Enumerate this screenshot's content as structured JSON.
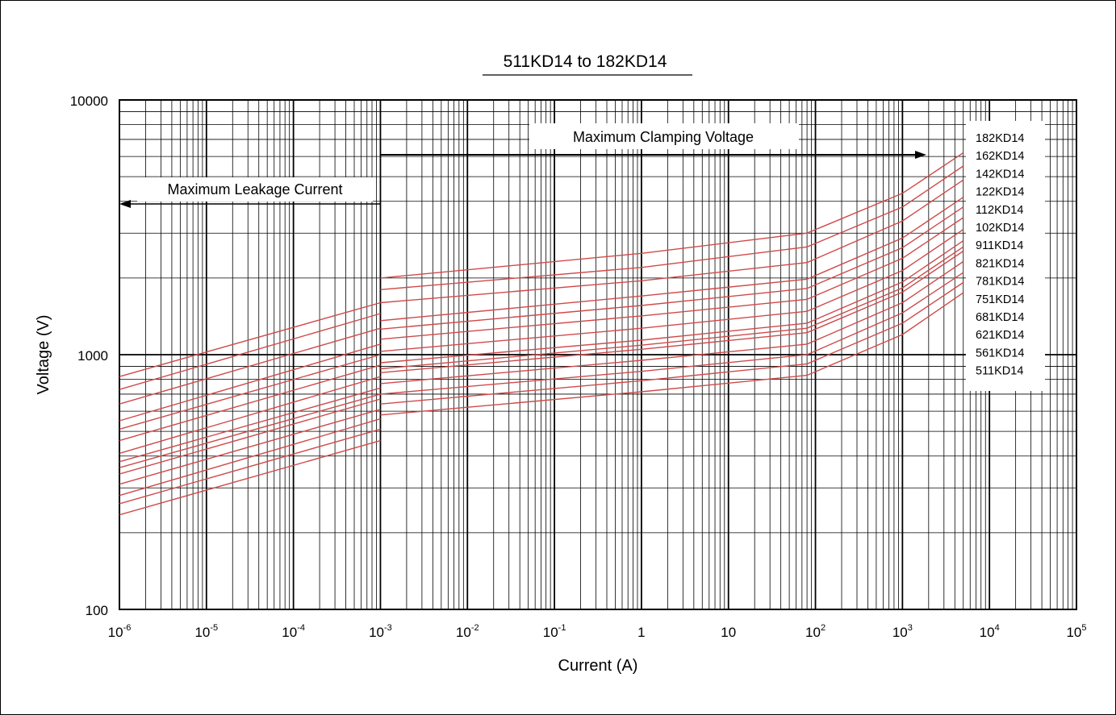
{
  "chart_data": {
    "type": "line",
    "title": "511KD14 to 182KD14",
    "xlabel": "Current (A)",
    "ylabel": "Voltage (V)",
    "x_scale": "log",
    "y_scale": "log",
    "xlim": [
      1e-06,
      100000
    ],
    "ylim": [
      100,
      10000
    ],
    "grid": true,
    "x_ticks": [
      {
        "value": 1e-06,
        "base": "10",
        "exp": "-6"
      },
      {
        "value": 1e-05,
        "base": "10",
        "exp": "-5"
      },
      {
        "value": 0.0001,
        "base": "10",
        "exp": "-4"
      },
      {
        "value": 0.001,
        "base": "10",
        "exp": "-3"
      },
      {
        "value": 0.01,
        "base": "10",
        "exp": "-2"
      },
      {
        "value": 0.1,
        "base": "10",
        "exp": "-1"
      },
      {
        "value": 1,
        "base": "1",
        "exp": ""
      },
      {
        "value": 10,
        "base": "10",
        "exp": ""
      },
      {
        "value": 100,
        "base": "10",
        "exp": "2"
      },
      {
        "value": 1000,
        "base": "10",
        "exp": "3"
      },
      {
        "value": 10000,
        "base": "10",
        "exp": "4"
      },
      {
        "value": 100000,
        "base": "10",
        "exp": "5"
      }
    ],
    "y_ticks": [
      {
        "value": 100,
        "label": "100"
      },
      {
        "value": 1000,
        "label": "1000"
      },
      {
        "value": 10000,
        "label": "10000"
      }
    ],
    "annotations": {
      "clamping": "Maximum Clamping Voltage",
      "leakage": "Maximum Leakage Current"
    },
    "legend_position": "right",
    "line_color": "#d04a4a",
    "series": [
      {
        "name": "182KD14",
        "leakage": [
          [
            1e-06,
            820
          ],
          [
            0.001,
            1600
          ]
        ],
        "clamping": [
          [
            0.001,
            2000
          ],
          [
            1,
            2500
          ],
          [
            80,
            3000
          ],
          [
            1000,
            4300
          ],
          [
            5000,
            6200
          ]
        ]
      },
      {
        "name": "162KD14",
        "leakage": [
          [
            1e-06,
            730
          ],
          [
            0.001,
            1450
          ]
        ],
        "clamping": [
          [
            0.001,
            1800
          ],
          [
            1,
            2200
          ],
          [
            80,
            2650
          ],
          [
            1000,
            3800
          ],
          [
            5000,
            5500
          ]
        ]
      },
      {
        "name": "142KD14",
        "leakage": [
          [
            1e-06,
            640
          ],
          [
            0.001,
            1270
          ]
        ],
        "clamping": [
          [
            0.001,
            1600
          ],
          [
            1,
            1950
          ],
          [
            80,
            2300
          ],
          [
            1000,
            3350
          ],
          [
            5000,
            4850
          ]
        ]
      },
      {
        "name": "122KD14",
        "leakage": [
          [
            1e-06,
            550
          ],
          [
            0.001,
            1100
          ]
        ],
        "clamping": [
          [
            0.001,
            1360
          ],
          [
            1,
            1700
          ],
          [
            80,
            1980
          ],
          [
            1000,
            2870
          ],
          [
            5000,
            4150
          ]
        ]
      },
      {
        "name": "112KD14",
        "leakage": [
          [
            1e-06,
            510
          ],
          [
            0.001,
            1000
          ]
        ],
        "clamping": [
          [
            0.001,
            1260
          ],
          [
            1,
            1560
          ],
          [
            80,
            1820
          ],
          [
            1000,
            2630
          ],
          [
            5000,
            3800
          ]
        ]
      },
      {
        "name": "102KD14",
        "leakage": [
          [
            1e-06,
            460
          ],
          [
            0.001,
            910
          ]
        ],
        "clamping": [
          [
            0.001,
            1150
          ],
          [
            1,
            1420
          ],
          [
            80,
            1650
          ],
          [
            1000,
            2390
          ],
          [
            5000,
            3450
          ]
        ]
      },
      {
        "name": "911KD14",
        "leakage": [
          [
            1e-06,
            410
          ],
          [
            0.001,
            820
          ]
        ],
        "clamping": [
          [
            0.001,
            1030
          ],
          [
            1,
            1270
          ],
          [
            80,
            1480
          ],
          [
            1000,
            2140
          ],
          [
            5000,
            3100
          ]
        ]
      },
      {
        "name": "821KD14",
        "leakage": [
          [
            1e-06,
            380
          ],
          [
            0.001,
            740
          ]
        ],
        "clamping": [
          [
            0.001,
            930
          ],
          [
            1,
            1140
          ],
          [
            80,
            1330
          ],
          [
            1000,
            1930
          ],
          [
            5000,
            2800
          ]
        ]
      },
      {
        "name": "781KD14",
        "leakage": [
          [
            1e-06,
            360
          ],
          [
            0.001,
            700
          ]
        ],
        "clamping": [
          [
            0.001,
            880
          ],
          [
            1,
            1090
          ],
          [
            80,
            1270
          ],
          [
            1000,
            1830
          ],
          [
            5000,
            2650
          ]
        ]
      },
      {
        "name": "751KD14",
        "leakage": [
          [
            1e-06,
            340
          ],
          [
            0.001,
            670
          ]
        ],
        "clamping": [
          [
            0.001,
            850
          ],
          [
            1,
            1050
          ],
          [
            80,
            1220
          ],
          [
            1000,
            1760
          ],
          [
            5000,
            2550
          ]
        ]
      },
      {
        "name": "681KD14",
        "leakage": [
          [
            1e-06,
            310
          ],
          [
            0.001,
            610
          ]
        ],
        "clamping": [
          [
            0.001,
            770
          ],
          [
            1,
            950
          ],
          [
            80,
            1100
          ],
          [
            1000,
            1600
          ],
          [
            5000,
            2320
          ]
        ]
      },
      {
        "name": "621KD14",
        "leakage": [
          [
            1e-06,
            280
          ],
          [
            0.001,
            560
          ]
        ],
        "clamping": [
          [
            0.001,
            700
          ],
          [
            1,
            860
          ],
          [
            80,
            1000
          ],
          [
            1000,
            1460
          ],
          [
            5000,
            2100
          ]
        ]
      },
      {
        "name": "561KD14",
        "leakage": [
          [
            1e-06,
            260
          ],
          [
            0.001,
            510
          ]
        ],
        "clamping": [
          [
            0.001,
            640
          ],
          [
            1,
            790
          ],
          [
            80,
            920
          ],
          [
            1000,
            1330
          ],
          [
            5000,
            1920
          ]
        ]
      },
      {
        "name": "511KD14",
        "leakage": [
          [
            1e-06,
            235
          ],
          [
            0.001,
            460
          ]
        ],
        "clamping": [
          [
            0.001,
            580
          ],
          [
            1,
            715
          ],
          [
            80,
            830
          ],
          [
            1000,
            1200
          ],
          [
            5000,
            1750
          ]
        ]
      }
    ]
  }
}
